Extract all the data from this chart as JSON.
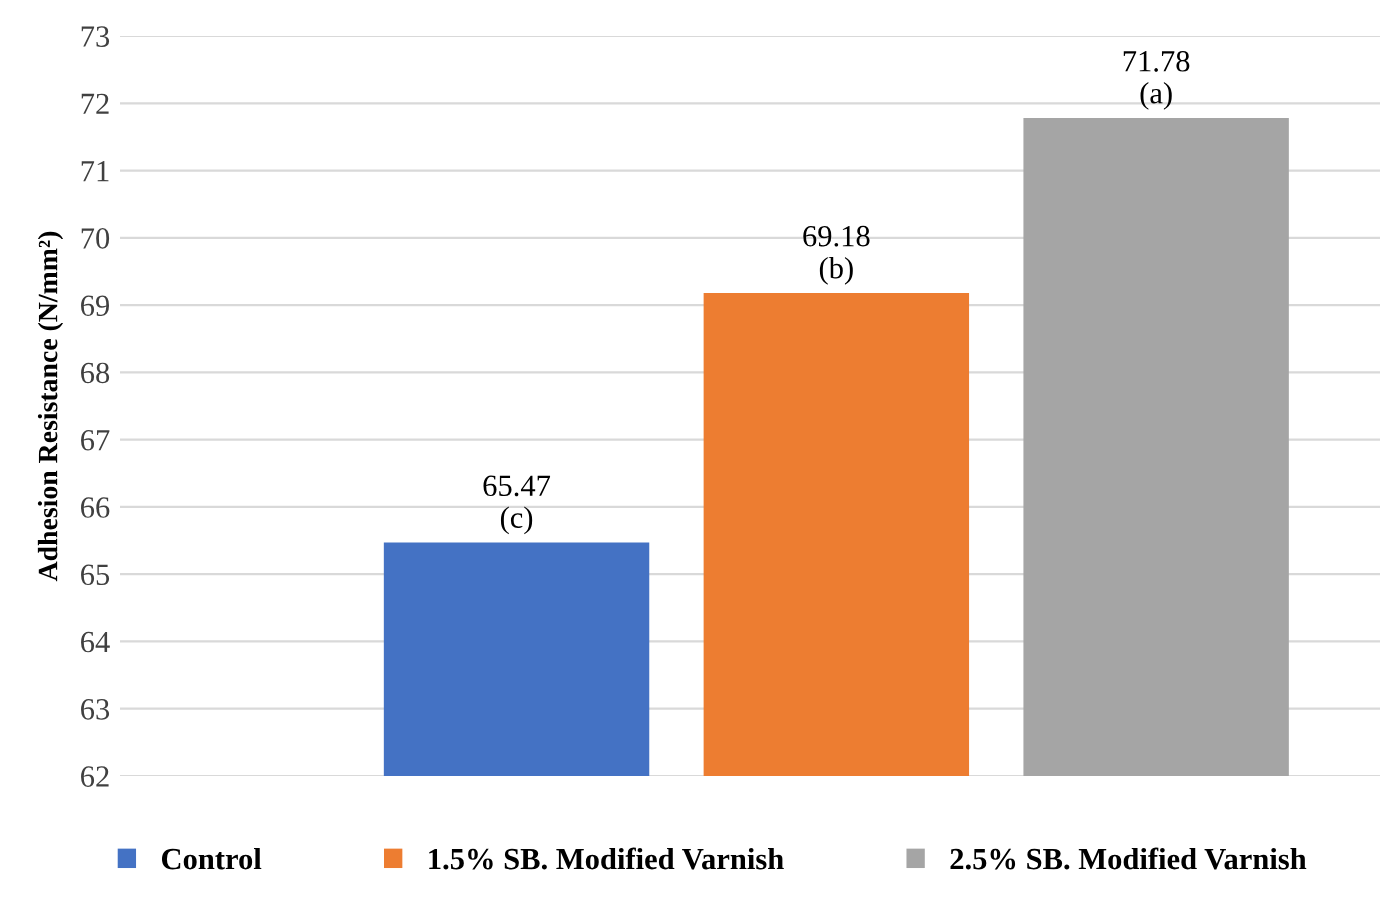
{
  "chart_data": {
    "type": "bar",
    "ylabel": "Adhesion Resistance (N/mm²)",
    "categories": [
      null,
      null,
      null
    ],
    "series": [
      {
        "name": "Control",
        "color": "#4472c4",
        "values": [
          65.47,
          null,
          null
        ],
        "value_labels": [
          "65.47\n(c)",
          null,
          null
        ]
      },
      {
        "name": "1.5% SB. Modified Varnish",
        "color": "#ed7d31",
        "values": [
          null,
          69.18,
          null
        ],
        "value_labels": [
          null,
          "69.18\n(b)",
          null
        ]
      },
      {
        "name": "2.5% SB. Modified Varnish",
        "color": "#a5a5a5",
        "values": [
          null,
          null,
          71.78
        ],
        "value_labels": [
          null,
          null,
          "71.78\n(a)"
        ]
      }
    ],
    "ylim": [
      62,
      73
    ],
    "yticks": [
      62,
      63,
      64,
      65,
      66,
      67,
      68,
      69,
      70,
      71,
      72,
      73
    ],
    "grid": "y",
    "legend": "bottom"
  }
}
